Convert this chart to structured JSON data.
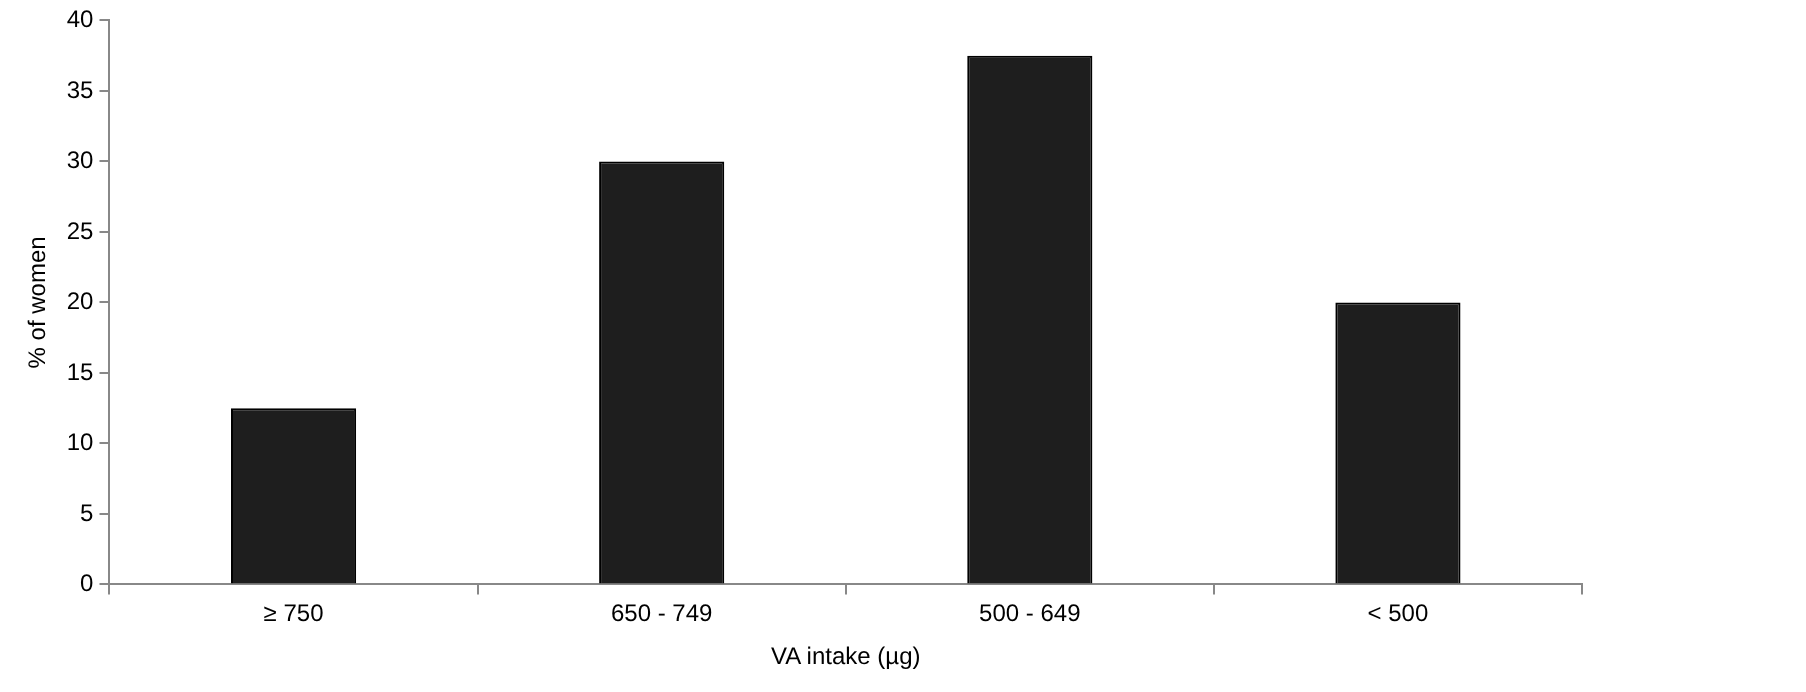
{
  "chart_data": {
    "type": "bar",
    "xlabel": "VA intake (µg)",
    "ylabel": "% of women",
    "categories": [
      "≥ 750",
      "650 - 749",
      "500 - 649",
      "< 500"
    ],
    "values": [
      12.5,
      30,
      37.5,
      20
    ],
    "color": "#1e1e1e",
    "ylim": [
      0,
      40
    ],
    "yticks": [
      0,
      5,
      10,
      15,
      20,
      25,
      30,
      35,
      40
    ],
    "grid": false,
    "legend": false
  }
}
